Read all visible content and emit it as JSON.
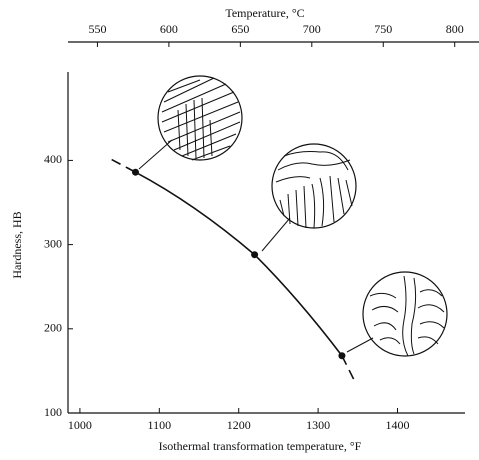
{
  "chart_data": {
    "type": "line",
    "x2_label": "Temperature, °C",
    "ylabel": "Hardness, HB",
    "xlabel": "Isothermal transformation temperature, °F",
    "xlim": [
      985,
      1485
    ],
    "xticks": [
      1000,
      1100,
      1200,
      1300,
      1400
    ],
    "x2lim": [
      529.4,
      807.2
    ],
    "x2ticks": [
      550,
      600,
      650,
      700,
      750,
      800
    ],
    "ylim": [
      100,
      505
    ],
    "yticks": [
      100,
      200,
      300,
      400
    ],
    "curve": {
      "x": [
        1040,
        1070,
        1220,
        1330,
        1347
      ],
      "values": [
        401,
        386,
        288,
        168,
        136
      ],
      "color": "#111111"
    },
    "points": {
      "x": [
        1070,
        1220,
        1330
      ],
      "values": [
        386,
        288,
        168
      ],
      "color": "#111111"
    }
  }
}
